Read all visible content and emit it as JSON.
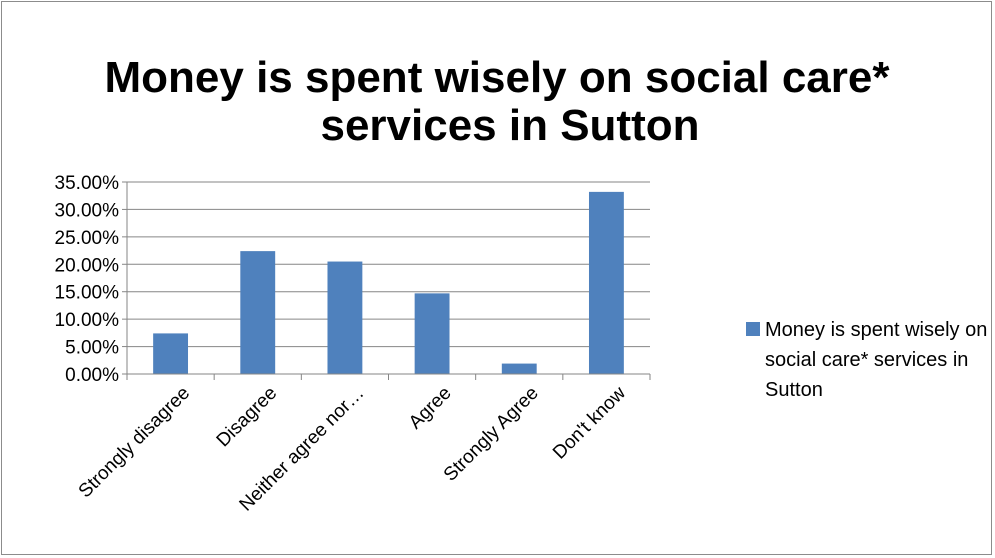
{
  "chart_data": {
    "type": "bar",
    "title": "Money is spent wisely on social care* services in Sutton",
    "title_lines": [
      "Money is spent wisely on social care*",
      "services in Sutton"
    ],
    "categories": [
      "Strongly disagree",
      "Disagree",
      "Neither agree nor…",
      "Agree",
      "Strongly Agree",
      "Don't know"
    ],
    "series": [
      {
        "name": "Money is spent wisely on social care* services in Sutton",
        "values": [
          7.4,
          22.4,
          20.5,
          14.7,
          1.9,
          33.2
        ],
        "color": "#4f81bd"
      }
    ],
    "legend_lines": [
      "Money is spent wisely on",
      "social care* services in",
      "Sutton"
    ],
    "legend_position": "right",
    "yticks": [
      "0.00%",
      "5.00%",
      "10.00%",
      "15.00%",
      "20.00%",
      "25.00%",
      "30.00%",
      "35.00%"
    ],
    "ylim": [
      0,
      35
    ],
    "grid": true,
    "xlabel": "",
    "ylabel": ""
  }
}
